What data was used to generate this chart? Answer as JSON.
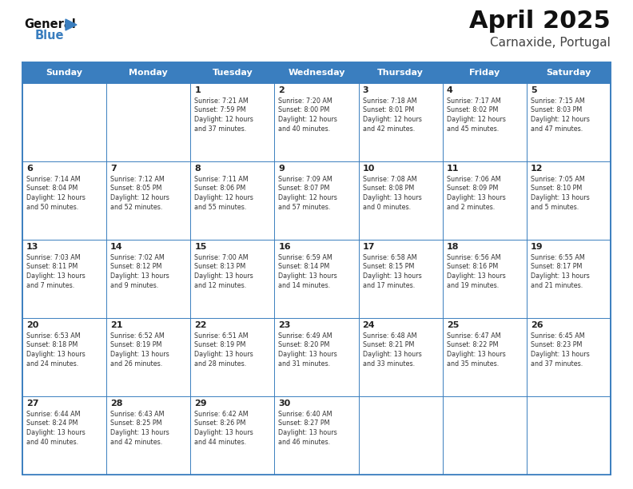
{
  "title": "April 2025",
  "subtitle": "Carnaxide, Portugal",
  "header_color": "#3a7ebf",
  "header_text_color": "#ffffff",
  "background_color": "#ffffff",
  "cell_bg_color": "#ffffff",
  "border_color": "#3a7ebf",
  "light_border_color": "#b0b0b0",
  "text_color": "#222222",
  "days_of_week": [
    "Sunday",
    "Monday",
    "Tuesday",
    "Wednesday",
    "Thursday",
    "Friday",
    "Saturday"
  ],
  "weeks": [
    [
      {
        "day": "",
        "sunrise": "",
        "sunset": "",
        "daylight_h": "",
        "daylight_m": ""
      },
      {
        "day": "",
        "sunrise": "",
        "sunset": "",
        "daylight_h": "",
        "daylight_m": ""
      },
      {
        "day": "1",
        "sunrise": "7:21 AM",
        "sunset": "7:59 PM",
        "daylight_h": "12",
        "daylight_m": "37"
      },
      {
        "day": "2",
        "sunrise": "7:20 AM",
        "sunset": "8:00 PM",
        "daylight_h": "12",
        "daylight_m": "40"
      },
      {
        "day": "3",
        "sunrise": "7:18 AM",
        "sunset": "8:01 PM",
        "daylight_h": "12",
        "daylight_m": "42"
      },
      {
        "day": "4",
        "sunrise": "7:17 AM",
        "sunset": "8:02 PM",
        "daylight_h": "12",
        "daylight_m": "45"
      },
      {
        "day": "5",
        "sunrise": "7:15 AM",
        "sunset": "8:03 PM",
        "daylight_h": "12",
        "daylight_m": "47"
      }
    ],
    [
      {
        "day": "6",
        "sunrise": "7:14 AM",
        "sunset": "8:04 PM",
        "daylight_h": "12",
        "daylight_m": "50"
      },
      {
        "day": "7",
        "sunrise": "7:12 AM",
        "sunset": "8:05 PM",
        "daylight_h": "12",
        "daylight_m": "52"
      },
      {
        "day": "8",
        "sunrise": "7:11 AM",
        "sunset": "8:06 PM",
        "daylight_h": "12",
        "daylight_m": "55"
      },
      {
        "day": "9",
        "sunrise": "7:09 AM",
        "sunset": "8:07 PM",
        "daylight_h": "12",
        "daylight_m": "57"
      },
      {
        "day": "10",
        "sunrise": "7:08 AM",
        "sunset": "8:08 PM",
        "daylight_h": "13",
        "daylight_m": "0"
      },
      {
        "day": "11",
        "sunrise": "7:06 AM",
        "sunset": "8:09 PM",
        "daylight_h": "13",
        "daylight_m": "2"
      },
      {
        "day": "12",
        "sunrise": "7:05 AM",
        "sunset": "8:10 PM",
        "daylight_h": "13",
        "daylight_m": "5"
      }
    ],
    [
      {
        "day": "13",
        "sunrise": "7:03 AM",
        "sunset": "8:11 PM",
        "daylight_h": "13",
        "daylight_m": "7"
      },
      {
        "day": "14",
        "sunrise": "7:02 AM",
        "sunset": "8:12 PM",
        "daylight_h": "13",
        "daylight_m": "9"
      },
      {
        "day": "15",
        "sunrise": "7:00 AM",
        "sunset": "8:13 PM",
        "daylight_h": "13",
        "daylight_m": "12"
      },
      {
        "day": "16",
        "sunrise": "6:59 AM",
        "sunset": "8:14 PM",
        "daylight_h": "13",
        "daylight_m": "14"
      },
      {
        "day": "17",
        "sunrise": "6:58 AM",
        "sunset": "8:15 PM",
        "daylight_h": "13",
        "daylight_m": "17"
      },
      {
        "day": "18",
        "sunrise": "6:56 AM",
        "sunset": "8:16 PM",
        "daylight_h": "13",
        "daylight_m": "19"
      },
      {
        "day": "19",
        "sunrise": "6:55 AM",
        "sunset": "8:17 PM",
        "daylight_h": "13",
        "daylight_m": "21"
      }
    ],
    [
      {
        "day": "20",
        "sunrise": "6:53 AM",
        "sunset": "8:18 PM",
        "daylight_h": "13",
        "daylight_m": "24"
      },
      {
        "day": "21",
        "sunrise": "6:52 AM",
        "sunset": "8:19 PM",
        "daylight_h": "13",
        "daylight_m": "26"
      },
      {
        "day": "22",
        "sunrise": "6:51 AM",
        "sunset": "8:19 PM",
        "daylight_h": "13",
        "daylight_m": "28"
      },
      {
        "day": "23",
        "sunrise": "6:49 AM",
        "sunset": "8:20 PM",
        "daylight_h": "13",
        "daylight_m": "31"
      },
      {
        "day": "24",
        "sunrise": "6:48 AM",
        "sunset": "8:21 PM",
        "daylight_h": "13",
        "daylight_m": "33"
      },
      {
        "day": "25",
        "sunrise": "6:47 AM",
        "sunset": "8:22 PM",
        "daylight_h": "13",
        "daylight_m": "35"
      },
      {
        "day": "26",
        "sunrise": "6:45 AM",
        "sunset": "8:23 PM",
        "daylight_h": "13",
        "daylight_m": "37"
      }
    ],
    [
      {
        "day": "27",
        "sunrise": "6:44 AM",
        "sunset": "8:24 PM",
        "daylight_h": "13",
        "daylight_m": "40"
      },
      {
        "day": "28",
        "sunrise": "6:43 AM",
        "sunset": "8:25 PM",
        "daylight_h": "13",
        "daylight_m": "42"
      },
      {
        "day": "29",
        "sunrise": "6:42 AM",
        "sunset": "8:26 PM",
        "daylight_h": "13",
        "daylight_m": "44"
      },
      {
        "day": "30",
        "sunrise": "6:40 AM",
        "sunset": "8:27 PM",
        "daylight_h": "13",
        "daylight_m": "46"
      },
      {
        "day": "",
        "sunrise": "",
        "sunset": "",
        "daylight_h": "",
        "daylight_m": ""
      },
      {
        "day": "",
        "sunrise": "",
        "sunset": "",
        "daylight_h": "",
        "daylight_m": ""
      },
      {
        "day": "",
        "sunrise": "",
        "sunset": "",
        "daylight_h": "",
        "daylight_m": ""
      }
    ]
  ],
  "title_fontsize": 22,
  "subtitle_fontsize": 11,
  "dow_fontsize": 8,
  "day_num_fontsize": 8,
  "cell_text_fontsize": 5.8
}
